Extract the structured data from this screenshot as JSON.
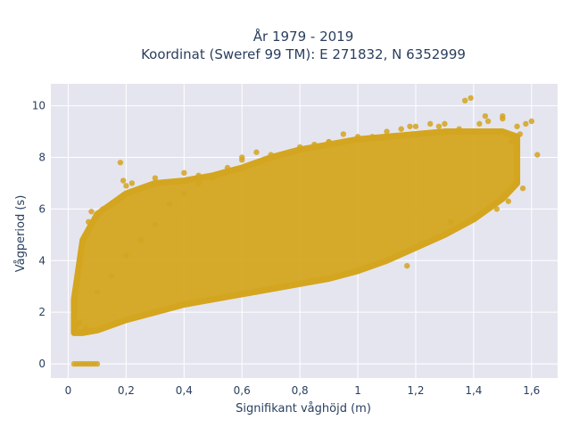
{
  "chart_data": {
    "type": "scatter",
    "title_line1": "År 1979 - 2019",
    "title_line2": "Koordinat (Sweref 99 TM): E 271832, N 6352999",
    "xlabel": "Signifikant våghöjd (m)",
    "ylabel": "Vågperiod (s)",
    "xlim": [
      -0.06,
      1.69
    ],
    "ylim": [
      -0.55,
      10.85
    ],
    "x_ticks": [
      0,
      0.2,
      0.4,
      0.6,
      0.8,
      1,
      1.2,
      1.4,
      1.6
    ],
    "x_tick_labels": [
      "0",
      "0,2",
      "0,4",
      "0,6",
      "0,8",
      "1",
      "1,2",
      "1,4",
      "1,6"
    ],
    "y_ticks": [
      0,
      2,
      4,
      6,
      8,
      10
    ],
    "y_tick_labels": [
      "0",
      "2",
      "4",
      "6",
      "8",
      "10"
    ],
    "grid": true,
    "marker_color": "#D4A51F",
    "plot_background": "#E5E5F0",
    "band": {
      "x": [
        0.02,
        0.05,
        0.1,
        0.2,
        0.3,
        0.4,
        0.5,
        0.6,
        0.7,
        0.8,
        0.9,
        1.0,
        1.1,
        1.2,
        1.3,
        1.4,
        1.5,
        1.55
      ],
      "y_low": [
        1.2,
        1.2,
        1.3,
        1.7,
        2.0,
        2.3,
        2.5,
        2.7,
        2.9,
        3.1,
        3.3,
        3.6,
        4.0,
        4.5,
        5.0,
        5.6,
        6.4,
        7.0
      ],
      "y_high": [
        2.5,
        4.8,
        5.8,
        6.6,
        7.0,
        7.1,
        7.3,
        7.6,
        8.0,
        8.3,
        8.5,
        8.7,
        8.8,
        8.9,
        9.0,
        9.0,
        9.0,
        8.8
      ]
    },
    "series": [
      {
        "x": [
          0.02,
          0.03,
          0.04,
          0.05,
          0.06,
          0.07,
          0.08,
          0.09,
          0.1,
          0.02,
          0.03,
          0.05,
          0.06,
          0.04,
          0.1,
          0.15,
          0.2,
          0.25,
          0.3,
          0.35,
          0.4,
          0.45,
          0.5,
          0.55,
          0.6,
          0.7,
          0.8,
          0.9,
          1.0,
          1.1,
          1.2,
          1.25,
          1.3,
          1.35,
          1.4,
          1.45,
          1.5,
          1.55,
          1.58,
          1.6,
          1.62,
          1.37,
          1.39,
          1.44,
          0.18,
          0.19,
          0.3,
          0.4,
          0.45,
          1.17,
          1.32,
          1.48,
          1.52,
          1.57,
          0.08,
          0.1,
          0.12,
          0.07,
          0.2,
          0.22,
          1.18,
          0.6,
          0.65,
          0.9,
          1.05,
          0.85,
          0.95,
          1.15,
          1.28,
          1.42,
          1.5,
          1.56,
          1.53
        ],
        "y": [
          0.0,
          0.0,
          0.0,
          0.0,
          0.0,
          0.0,
          0.0,
          0.0,
          0.0,
          1.3,
          1.5,
          1.25,
          1.4,
          1.6,
          2.8,
          3.4,
          4.2,
          4.8,
          5.4,
          6.2,
          6.6,
          7.0,
          7.2,
          7.6,
          7.9,
          8.1,
          8.4,
          8.6,
          8.8,
          9.0,
          9.2,
          9.3,
          9.3,
          9.1,
          9.0,
          9.4,
          9.6,
          9.2,
          9.3,
          9.4,
          8.1,
          10.2,
          10.3,
          9.6,
          7.8,
          7.1,
          7.2,
          7.4,
          7.3,
          3.8,
          5.5,
          6.0,
          6.3,
          6.8,
          5.9,
          5.8,
          6.0,
          5.5,
          6.9,
          7.0,
          9.2,
          8.0,
          8.2,
          8.6,
          8.8,
          8.5,
          8.9,
          9.1,
          9.2,
          9.3,
          9.5,
          8.9,
          8.6
        ]
      }
    ]
  }
}
